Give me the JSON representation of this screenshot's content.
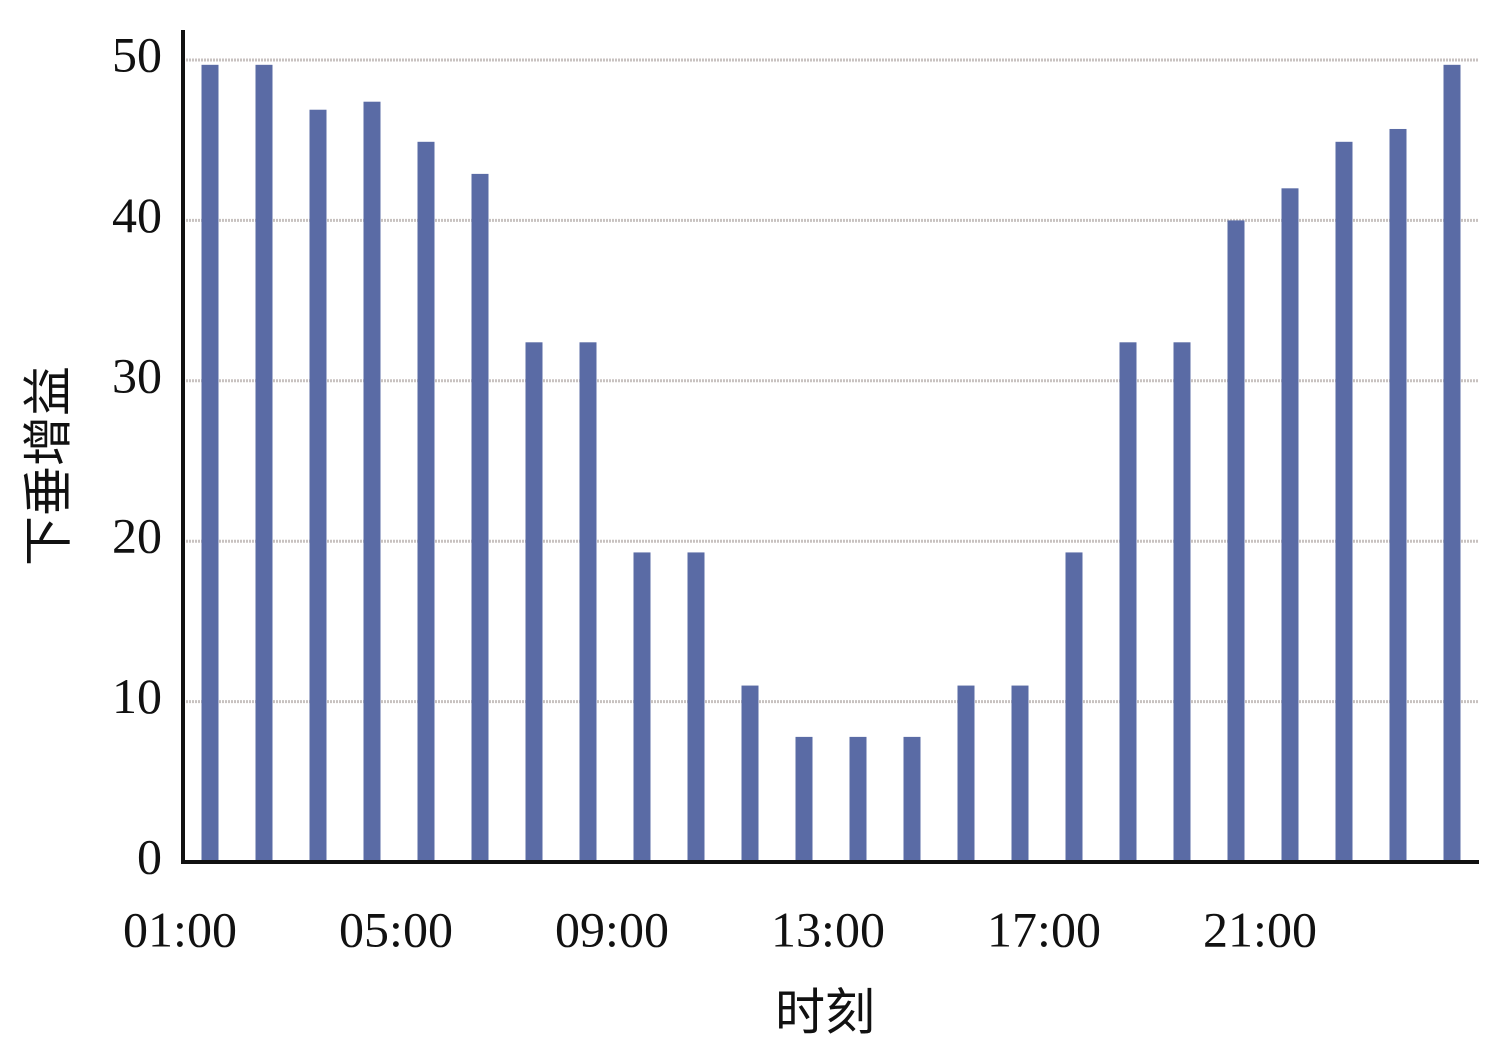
{
  "chart_data": {
    "type": "bar",
    "x_label": "时刻",
    "y_label": "下垂增益",
    "categories": [
      "01:00",
      null,
      null,
      null,
      "05:00",
      null,
      null,
      null,
      "09:00",
      null,
      null,
      null,
      "13:00",
      null,
      null,
      null,
      "17:00",
      null,
      null,
      null,
      "21:00",
      null,
      null,
      null
    ],
    "values": [
      49.7,
      49.7,
      46.9,
      47.4,
      44.9,
      42.9,
      32.4,
      32.4,
      19.3,
      19.3,
      11.0,
      7.8,
      7.8,
      7.8,
      11.0,
      11.0,
      19.3,
      32.4,
      32.4,
      40.0,
      42.0,
      44.9,
      45.7,
      49.7
    ],
    "color": "#5a6ba5",
    "ylim": [
      0,
      50
    ],
    "yticks": [
      0,
      10,
      20,
      30,
      40,
      50
    ],
    "grid": true
  }
}
